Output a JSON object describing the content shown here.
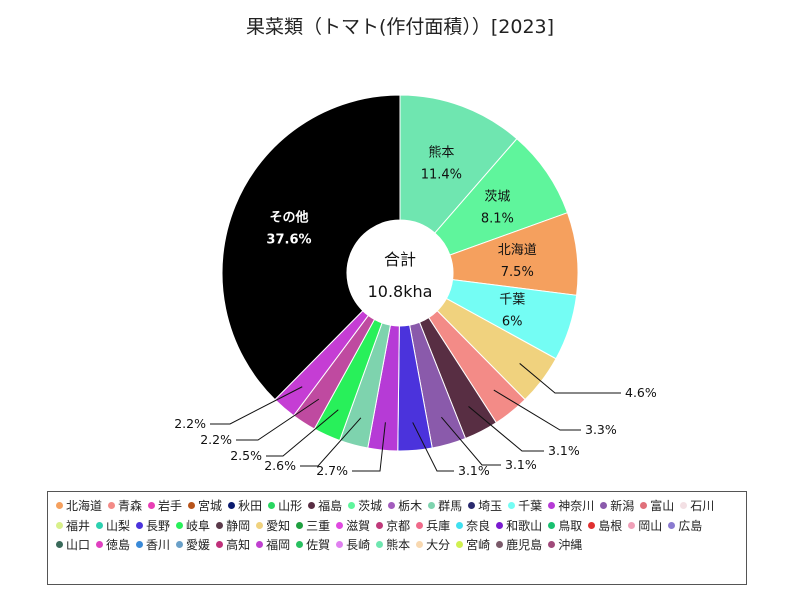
{
  "chart_data": {
    "type": "pie",
    "title": "果菜類（トマト(作付面積））[2023]",
    "center_label": "合計",
    "center_value": "10.8kha",
    "slices": [
      {
        "name": "熊本",
        "value": 11.4,
        "label": "11.4%",
        "color": "#6fe6b0"
      },
      {
        "name": "茨城",
        "value": 8.1,
        "label": "8.1%",
        "color": "#5ff59c"
      },
      {
        "name": "北海道",
        "value": 7.5,
        "label": "7.5%",
        "color": "#f5a05e"
      },
      {
        "name": "千葉",
        "value": 6,
        "label": "6%",
        "color": "#74fdf4"
      },
      {
        "name": "愛知",
        "value": 4.6,
        "label": "4.6%",
        "color": "#f0d27e"
      },
      {
        "name": "",
        "value": 3.3,
        "label": "3.3%",
        "color": "#f38b87"
      },
      {
        "name": "",
        "value": 3.1,
        "label": "3.1%",
        "color": "#582e43"
      },
      {
        "name": "",
        "value": 3.1,
        "label": "3.1%",
        "color": "#8a5aab"
      },
      {
        "name": "",
        "value": 3.1,
        "label": "3.1%",
        "color": "#4b33dc"
      },
      {
        "name": "",
        "value": 2.7,
        "label": "2.7%",
        "color": "#b63bd6"
      },
      {
        "name": "",
        "value": 2.6,
        "label": "2.6%",
        "color": "#7ed3ae"
      },
      {
        "name": "",
        "value": 2.5,
        "label": "2.5%",
        "color": "#28f05a"
      },
      {
        "name": "",
        "value": 2.2,
        "label": "2.2%",
        "color": "#bf4aa0"
      },
      {
        "name": "",
        "value": 2.2,
        "label": "2.2%",
        "color": "#c53dd4"
      },
      {
        "name": "その他",
        "value": 37.6,
        "label": "37.6%",
        "color": "#000000"
      }
    ]
  },
  "legend": [
    {
      "name": "北海道",
      "color": "#f5a05e"
    },
    {
      "name": "青森",
      "color": "#f38b87"
    },
    {
      "name": "岩手",
      "color": "#e83fb4"
    },
    {
      "name": "宮城",
      "color": "#b8541a"
    },
    {
      "name": "秋田",
      "color": "#0a1a6e"
    },
    {
      "name": "山形",
      "color": "#28d660"
    },
    {
      "name": "福島",
      "color": "#582e43"
    },
    {
      "name": "茨城",
      "color": "#5ff59c"
    },
    {
      "name": "栃木",
      "color": "#a35cbd"
    },
    {
      "name": "群馬",
      "color": "#7ed3ae"
    },
    {
      "name": "埼玉",
      "color": "#2a2a6e"
    },
    {
      "name": "千葉",
      "color": "#74fdf4"
    },
    {
      "name": "神奈川",
      "color": "#b63bd6"
    },
    {
      "name": "新潟",
      "color": "#8a5aab"
    },
    {
      "name": "富山",
      "color": "#e0707a"
    },
    {
      "name": "石川",
      "color": "#f3e0e4"
    },
    {
      "name": "福井",
      "color": "#d8f08a"
    },
    {
      "name": "山梨",
      "color": "#2dd1b0"
    },
    {
      "name": "長野",
      "color": "#4b33dc"
    },
    {
      "name": "岐阜",
      "color": "#28f05a"
    },
    {
      "name": "静岡",
      "color": "#5a3a4a"
    },
    {
      "name": "愛知",
      "color": "#f0d27e"
    },
    {
      "name": "三重",
      "color": "#1fa040"
    },
    {
      "name": "滋賀",
      "color": "#e04ae0"
    },
    {
      "name": "京都",
      "color": "#c03a7a"
    },
    {
      "name": "兵庫",
      "color": "#f06a8a"
    },
    {
      "name": "奈良",
      "color": "#40e0f0"
    },
    {
      "name": "和歌山",
      "color": "#7a1ad0"
    },
    {
      "name": "鳥取",
      "color": "#18c070"
    },
    {
      "name": "島根",
      "color": "#e03030"
    },
    {
      "name": "岡山",
      "color": "#f0a0b8"
    },
    {
      "name": "広島",
      "color": "#8a7ad0"
    },
    {
      "name": "山口",
      "color": "#3a6a5a"
    },
    {
      "name": "徳島",
      "color": "#e040c0"
    },
    {
      "name": "香川",
      "color": "#3a8ad8"
    },
    {
      "name": "愛媛",
      "color": "#6aa0c8"
    },
    {
      "name": "高知",
      "color": "#c0307a"
    },
    {
      "name": "福岡",
      "color": "#c040d0"
    },
    {
      "name": "佐賀",
      "color": "#28c060"
    },
    {
      "name": "長崎",
      "color": "#e080f0"
    },
    {
      "name": "熊本",
      "color": "#6fe6b0"
    },
    {
      "name": "大分",
      "color": "#f8d8b0"
    },
    {
      "name": "宮崎",
      "color": "#d0f050"
    },
    {
      "name": "鹿児島",
      "color": "#7a5a6a"
    },
    {
      "name": "沖縄",
      "color": "#a04a7a"
    }
  ]
}
